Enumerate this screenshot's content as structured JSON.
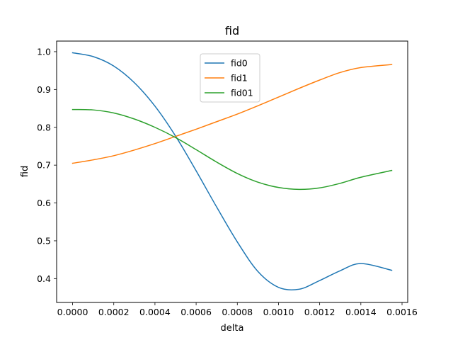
{
  "chart_data": {
    "type": "line",
    "title": "fid",
    "xlabel": "delta",
    "ylabel": "fid",
    "xlim": [
      -7.75e-05,
      0.0016275
    ],
    "ylim": [
      0.337,
      1.028
    ],
    "xticks": [
      0.0,
      0.0002,
      0.0004,
      0.0006,
      0.0008,
      0.001,
      0.0012,
      0.0014,
      0.0016
    ],
    "xtick_labels": [
      "0.0000",
      "0.0002",
      "0.0004",
      "0.0006",
      "0.0008",
      "0.0010",
      "0.0012",
      "0.0014",
      "0.0016"
    ],
    "yticks": [
      0.4,
      0.5,
      0.6,
      0.7,
      0.8,
      0.9,
      1.0
    ],
    "ytick_labels": [
      "0.4",
      "0.5",
      "0.6",
      "0.7",
      "0.8",
      "0.9",
      "1.0"
    ],
    "grid": false,
    "legend_position": "upper-center",
    "x": [
      0.0,
      0.0001,
      0.0002,
      0.0003,
      0.0004,
      0.0005,
      0.0006,
      0.0007,
      0.0008,
      0.0009,
      0.001,
      0.0011,
      0.0012,
      0.0013,
      0.0014,
      0.00155
    ],
    "series": [
      {
        "name": "fid0",
        "color": "#1f77b4",
        "values": [
          0.997,
          0.987,
          0.962,
          0.918,
          0.856,
          0.777,
          0.685,
          0.589,
          0.497,
          0.419,
          0.377,
          0.372,
          0.395,
          0.421,
          0.44,
          0.422
        ]
      },
      {
        "name": "fid1",
        "color": "#ff7f0e",
        "values": [
          0.705,
          0.714,
          0.725,
          0.74,
          0.757,
          0.776,
          0.795,
          0.815,
          0.835,
          0.857,
          0.88,
          0.903,
          0.925,
          0.945,
          0.958,
          0.966
        ]
      },
      {
        "name": "fid01",
        "color": "#2ca02c",
        "values": [
          0.847,
          0.846,
          0.838,
          0.822,
          0.8,
          0.773,
          0.741,
          0.708,
          0.678,
          0.655,
          0.641,
          0.636,
          0.64,
          0.652,
          0.668,
          0.686
        ]
      }
    ]
  }
}
